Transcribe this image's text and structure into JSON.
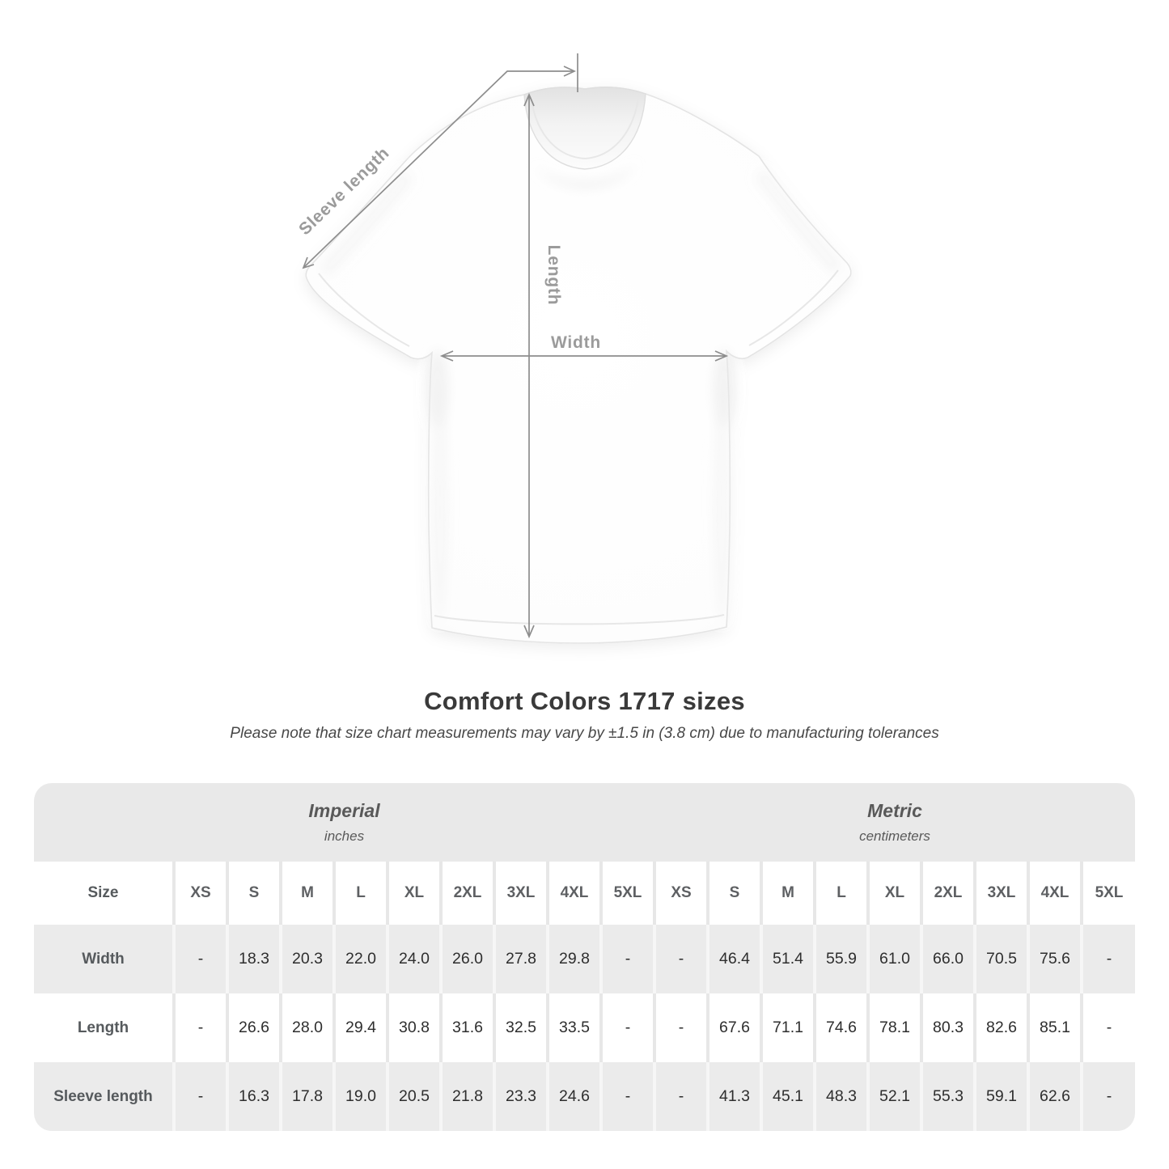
{
  "page": {
    "title": "Comfort Colors 1717 sizes",
    "subtitle": "Please note that size chart measurements may vary by ±1.5 in (3.8 cm) due to manufacturing tolerances"
  },
  "diagram": {
    "sleeve_length_label": "Sleeve length",
    "length_label": "Length",
    "width_label": "Width"
  },
  "colors": {
    "arrow": "#8d8d8d",
    "diagram_label": "#9b9b9b",
    "band_bg": "#e9e9e9",
    "stripe_bg": "#ebebeb",
    "header_text": "#5e6063",
    "value_text": "#2e2e2e"
  },
  "chart_data": {
    "type": "table",
    "title": "Comfort Colors 1717 sizes",
    "note": "Please note that size chart measurements may vary by ±1.5 in (3.8 cm) due to manufacturing tolerances",
    "row_header": "Size",
    "unit_groups": [
      {
        "label": "Imperial",
        "unit": "inches",
        "sizes": [
          "XS",
          "S",
          "M",
          "L",
          "XL",
          "2XL",
          "3XL",
          "4XL",
          "5XL"
        ],
        "rows": [
          {
            "label": "Width",
            "values": [
              "-",
              "18.3",
              "20.3",
              "22.0",
              "24.0",
              "26.0",
              "27.8",
              "29.8",
              "-"
            ]
          },
          {
            "label": "Length",
            "values": [
              "-",
              "26.6",
              "28.0",
              "29.4",
              "30.8",
              "31.6",
              "32.5",
              "33.5",
              "-"
            ]
          },
          {
            "label": "Sleeve length",
            "values": [
              "-",
              "16.3",
              "17.8",
              "19.0",
              "20.5",
              "21.8",
              "23.3",
              "24.6",
              "-"
            ]
          }
        ]
      },
      {
        "label": "Metric",
        "unit": "centimeters",
        "sizes": [
          "XS",
          "S",
          "M",
          "L",
          "XL",
          "2XL",
          "3XL",
          "4XL",
          "5XL"
        ],
        "rows": [
          {
            "label": "Width",
            "values": [
              "-",
              "46.4",
              "51.4",
              "55.9",
              "61.0",
              "66.0",
              "70.5",
              "75.6",
              "-"
            ]
          },
          {
            "label": "Length",
            "values": [
              "-",
              "67.6",
              "71.1",
              "74.6",
              "78.1",
              "80.3",
              "82.6",
              "85.1",
              "-"
            ]
          },
          {
            "label": "Sleeve length",
            "values": [
              "-",
              "41.3",
              "45.1",
              "48.3",
              "52.1",
              "55.3",
              "59.1",
              "62.6",
              "-"
            ]
          }
        ]
      }
    ]
  }
}
